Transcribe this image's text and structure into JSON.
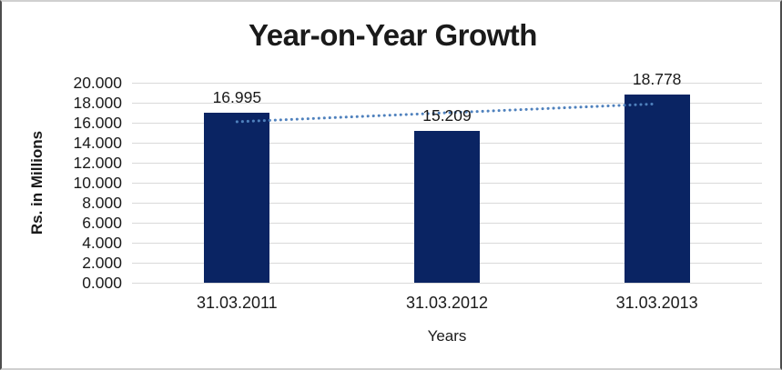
{
  "chart_data": {
    "type": "bar",
    "title": "Year-on-Year Growth",
    "xlabel": "Years",
    "ylabel": "Rs. in Millions",
    "categories": [
      "31.03.2011",
      "31.03.2012",
      "31.03.2013"
    ],
    "values": [
      16.995,
      15.209,
      18.778
    ],
    "data_labels": [
      "16.995",
      "15.209",
      "18.778"
    ],
    "ylim": [
      0,
      20
    ],
    "ytick_step": 2,
    "ytick_labels": [
      "0.000",
      "2.000",
      "4.000",
      "6.000",
      "8.000",
      "10.000",
      "12.000",
      "14.000",
      "16.000",
      "18.000",
      "20.000"
    ],
    "grid": true,
    "legend": "none",
    "bar_color": "#0a2463",
    "gridline_color": "#d9d9d9",
    "trendline": {
      "type": "linear",
      "style": "dotted",
      "color": "#4f81bd",
      "start_value": 16.1,
      "end_value": 17.89
    }
  }
}
